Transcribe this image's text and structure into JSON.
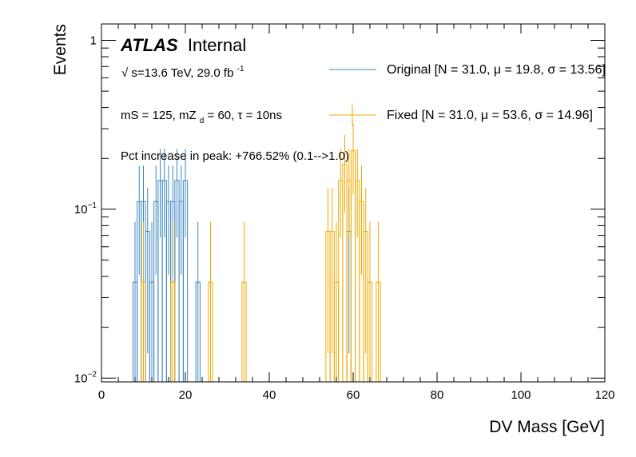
{
  "chart_data": {
    "type": "histogram",
    "xlabel": "DV Mass [GeV]",
    "ylabel": "Events",
    "xlim": [
      0,
      120
    ],
    "ylim": [
      0.0095,
      1.25
    ],
    "yscale": "log",
    "x_ticks": [
      0,
      20,
      40,
      60,
      80,
      100,
      120
    ],
    "x_tick_labels": [
      "0",
      "20",
      "40",
      "60",
      "80",
      "100",
      "120"
    ],
    "y_ticks": [
      0.01,
      0.1,
      1
    ],
    "annotations": {
      "atlas_bold": "ATLAS",
      "atlas_label": "Internal",
      "energy_sqrt": "√",
      "energy_text": "s=13.6 TeV, 29.0 fb",
      "energy_sup": "-1",
      "model_a": "mS = 125, mZ",
      "model_sub": "d",
      "model_b": " = 60, τ = 10ns",
      "pct_increase": "Pct increase in peak: +766.52% (0.1-->1.0)"
    },
    "legend_position": "top-right",
    "bin_width": 1,
    "series": [
      {
        "name": "Original [N = 31.0, μ = 19.8, σ = 13.56]",
        "color": "#3a87c0",
        "bins": [
          {
            "x": 8,
            "y": 0.037,
            "err": 0.047
          },
          {
            "x": 9,
            "y": 0.111,
            "err": 0.07
          },
          {
            "x": 10,
            "y": 0.111,
            "err": 0.07
          },
          {
            "x": 11,
            "y": 0.074,
            "err": 0.06
          },
          {
            "x": 12,
            "y": 0.037,
            "err": 0.047
          },
          {
            "x": 13,
            "y": 0.111,
            "err": 0.07
          },
          {
            "x": 14,
            "y": 0.148,
            "err": 0.08
          },
          {
            "x": 15,
            "y": 0.148,
            "err": 0.08
          },
          {
            "x": 16,
            "y": 0.111,
            "err": 0.07
          },
          {
            "x": 17,
            "y": 0.111,
            "err": 0.07
          },
          {
            "x": 18,
            "y": 0.148,
            "err": 0.08
          },
          {
            "x": 19,
            "y": 0.111,
            "err": 0.07
          },
          {
            "x": 20,
            "y": 0.148,
            "err": 0.08
          },
          {
            "x": 23,
            "y": 0.037,
            "err": 0.047
          },
          {
            "x": 59,
            "y": 0.074,
            "err": 0.06
          }
        ]
      },
      {
        "name": "Fixed [N = 31.0, μ = 53.6, σ = 14.96]",
        "color": "#f0aa00",
        "bins": [
          {
            "x": 10,
            "y": 0.037,
            "err": 0.047
          },
          {
            "x": 17,
            "y": 0.037,
            "err": 0.047
          },
          {
            "x": 26,
            "y": 0.037,
            "err": 0.047
          },
          {
            "x": 34,
            "y": 0.037,
            "err": 0.047
          },
          {
            "x": 54,
            "y": 0.074,
            "err": 0.06
          },
          {
            "x": 55,
            "y": 0.074,
            "err": 0.06
          },
          {
            "x": 56,
            "y": 0.037,
            "err": 0.047
          },
          {
            "x": 57,
            "y": 0.148,
            "err": 0.08
          },
          {
            "x": 58,
            "y": 0.185,
            "err": 0.09
          },
          {
            "x": 59,
            "y": 0.148,
            "err": 0.08
          },
          {
            "x": 60,
            "y": 0.222,
            "err": 0.1
          },
          {
            "x": 61,
            "y": 0.148,
            "err": 0.08
          },
          {
            "x": 62,
            "y": 0.111,
            "err": 0.07
          },
          {
            "x": 63,
            "y": 0.074,
            "err": 0.06
          },
          {
            "x": 64,
            "y": 0.037,
            "err": 0.047
          },
          {
            "x": 66,
            "y": 0.037,
            "err": 0.047
          }
        ]
      }
    ]
  }
}
